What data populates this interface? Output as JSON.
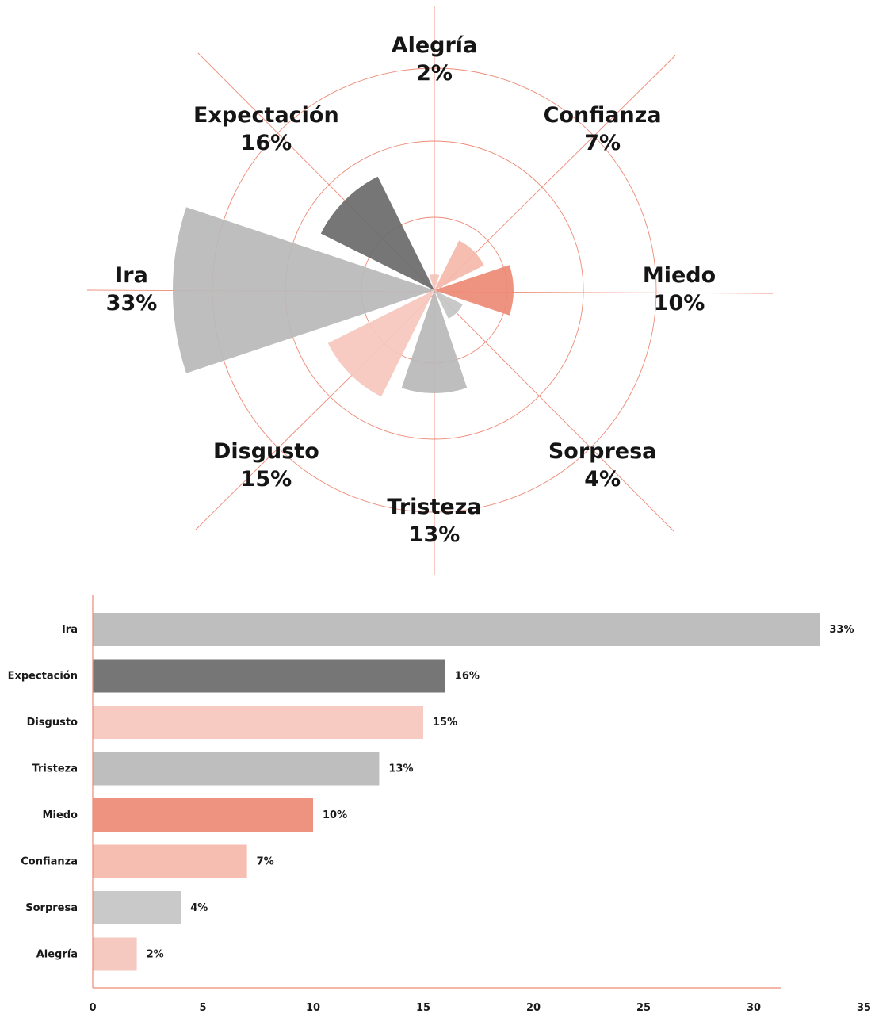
{
  "chart_data": [
    {
      "type": "polar-area",
      "title": "",
      "categories": [
        "Alegría",
        "Confianza",
        "Miedo",
        "Sorpresa",
        "Tristeza",
        "Disgusto",
        "Ira",
        "Expectación"
      ],
      "values": [
        2,
        7,
        10,
        4,
        13,
        15,
        33,
        16
      ],
      "labels": [
        "2%",
        "7%",
        "10%",
        "4%",
        "13%",
        "15%",
        "33%",
        "16%"
      ],
      "colors": [
        "#f4c4bb",
        "#f5b7aa",
        "#ee8a76",
        "#c4c4c4",
        "#b9b9b9",
        "#f6c7bd",
        "#b8b8b8",
        "#6a6a6a"
      ],
      "grid": true,
      "grid_color": "#ee8a76"
    },
    {
      "type": "bar",
      "orientation": "horizontal",
      "title": "",
      "categories": [
        "Ira",
        "Expectación",
        "Disgusto",
        "Tristeza",
        "Miedo",
        "Confianza",
        "Sorpresa",
        "Alegría"
      ],
      "values": [
        33,
        16,
        15,
        13,
        10,
        7,
        4,
        2
      ],
      "labels": [
        "33%",
        "16%",
        "15%",
        "13%",
        "10%",
        "7%",
        "4%",
        "2%"
      ],
      "colors": [
        "#b8b8b8",
        "#6a6a6a",
        "#f6c7bd",
        "#b9b9b9",
        "#ee8a76",
        "#f5b7aa",
        "#c4c4c4",
        "#f4c4bb"
      ],
      "xlim": [
        0,
        35
      ],
      "xticks": [
        0,
        5,
        10,
        15,
        20,
        25,
        30,
        35
      ],
      "xlabel": "",
      "ylabel": "",
      "axis_color": "#ee8a76"
    }
  ]
}
